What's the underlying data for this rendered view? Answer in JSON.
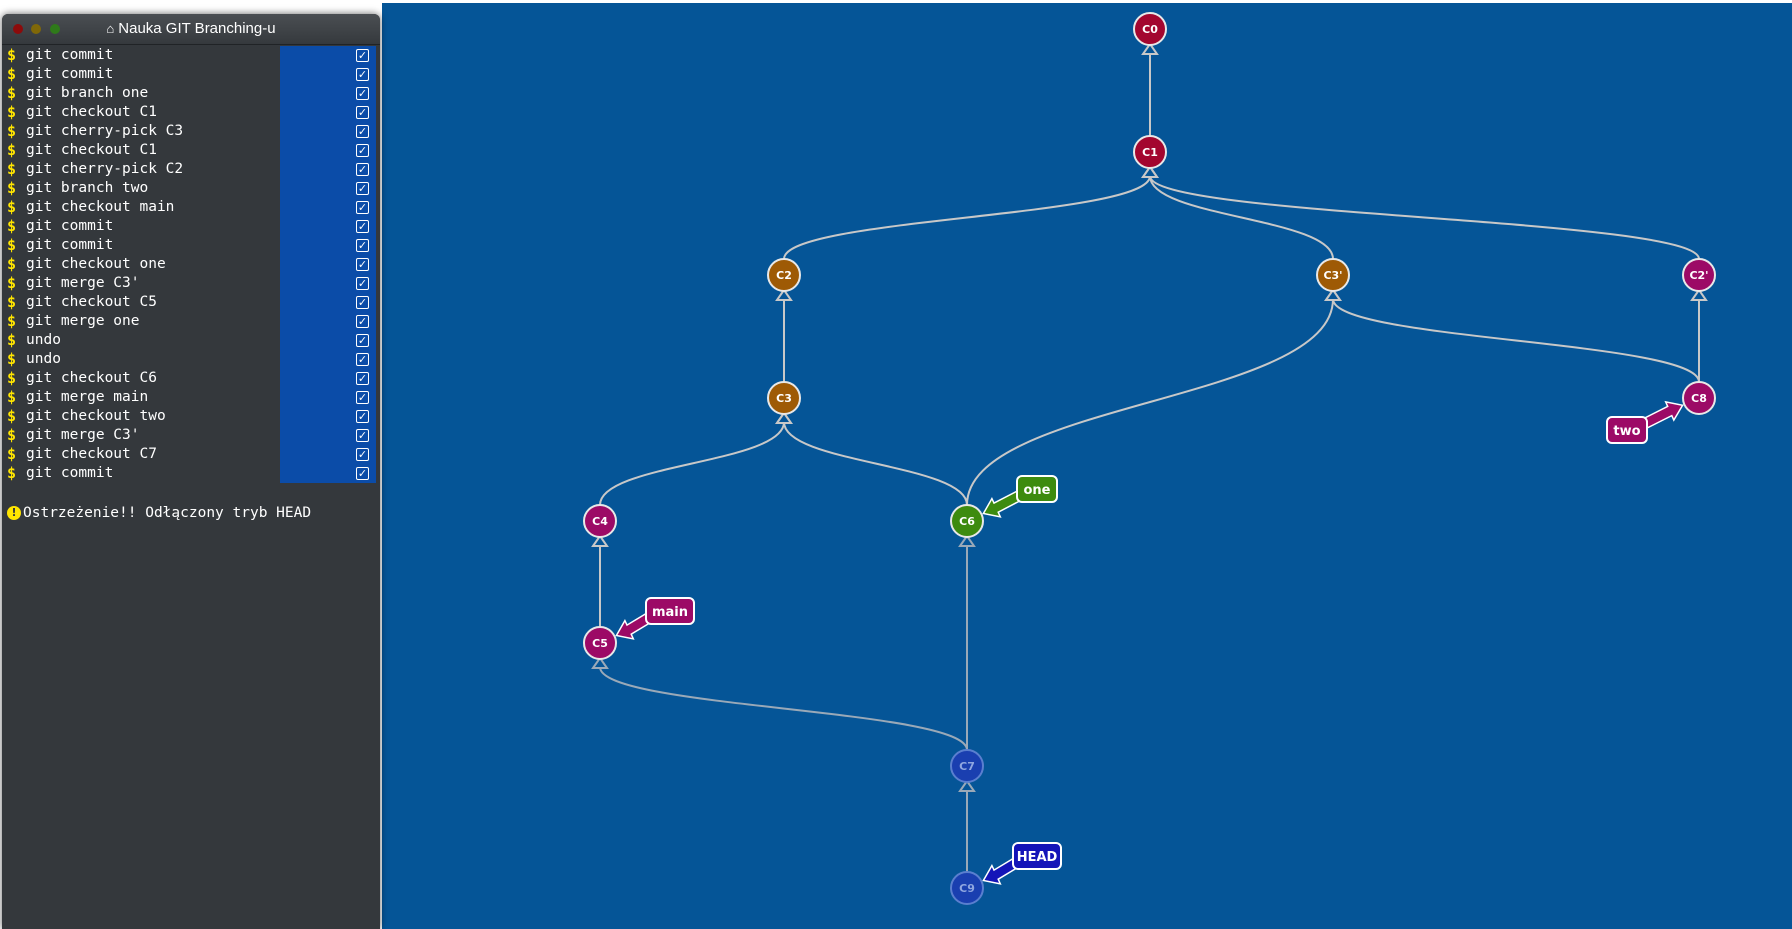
{
  "terminal": {
    "title": "Nauka GIT Branching-u",
    "home_icon": "home-icon",
    "commands": [
      {
        "prompt": "$",
        "text": "git commit",
        "done": true
      },
      {
        "prompt": "$",
        "text": "git commit",
        "done": true
      },
      {
        "prompt": "$",
        "text": "git branch one",
        "done": true
      },
      {
        "prompt": "$",
        "text": "git checkout C1",
        "done": true
      },
      {
        "prompt": "$",
        "text": "git cherry-pick C3",
        "done": true
      },
      {
        "prompt": "$",
        "text": "git checkout C1",
        "done": true
      },
      {
        "prompt": "$",
        "text": "git cherry-pick C2",
        "done": true
      },
      {
        "prompt": "$",
        "text": "git branch two",
        "done": true
      },
      {
        "prompt": "$",
        "text": "git checkout main",
        "done": true
      },
      {
        "prompt": "$",
        "text": "git commit",
        "done": true
      },
      {
        "prompt": "$",
        "text": "git commit",
        "done": true
      },
      {
        "prompt": "$",
        "text": "git checkout one",
        "done": true
      },
      {
        "prompt": "$",
        "text": "git merge C3'",
        "done": true
      },
      {
        "prompt": "$",
        "text": "git checkout C5",
        "done": true
      },
      {
        "prompt": "$",
        "text": "git merge one",
        "done": true
      },
      {
        "prompt": "$",
        "text": "undo",
        "done": true
      },
      {
        "prompt": "$",
        "text": "undo",
        "done": true
      },
      {
        "prompt": "$",
        "text": "git checkout C6",
        "done": true
      },
      {
        "prompt": "$",
        "text": "git merge main",
        "done": true
      },
      {
        "prompt": "$",
        "text": "git checkout two",
        "done": true
      },
      {
        "prompt": "$",
        "text": "git merge C3'",
        "done": true
      },
      {
        "prompt": "$",
        "text": "git checkout C7",
        "done": true
      },
      {
        "prompt": "$",
        "text": "git commit",
        "done": true
      }
    ],
    "warning": "Ostrzeżenie!! Odłączony tryb HEAD",
    "warning_icon": "exclamation-icon"
  },
  "graph": {
    "colors": {
      "background": "#055597",
      "red": "#a3062f",
      "orange": "#9e5a05",
      "magenta": "#9c0a66",
      "green": "#3d8b0f",
      "blue_commit": "#1a3fb0",
      "head": "#1414b8",
      "edge": "#c8c8c8"
    },
    "commits": [
      {
        "id": "C0",
        "color": "red"
      },
      {
        "id": "C1",
        "color": "red"
      },
      {
        "id": "C2",
        "color": "orange"
      },
      {
        "id": "C3'",
        "color": "orange"
      },
      {
        "id": "C2'",
        "color": "magenta"
      },
      {
        "id": "C3",
        "color": "orange"
      },
      {
        "id": "C8",
        "color": "magenta"
      },
      {
        "id": "C4",
        "color": "magenta"
      },
      {
        "id": "C6",
        "color": "green"
      },
      {
        "id": "C5",
        "color": "magenta"
      },
      {
        "id": "C7",
        "color": "blue_commit"
      },
      {
        "id": "C9",
        "color": "blue_commit"
      }
    ],
    "edges": [
      {
        "from": "C1",
        "to": "C0"
      },
      {
        "from": "C2",
        "to": "C1"
      },
      {
        "from": "C3'",
        "to": "C1"
      },
      {
        "from": "C2'",
        "to": "C1"
      },
      {
        "from": "C3",
        "to": "C2"
      },
      {
        "from": "C8",
        "to": "C2'"
      },
      {
        "from": "C8",
        "to": "C3'"
      },
      {
        "from": "C6",
        "to": "C3'"
      },
      {
        "from": "C4",
        "to": "C3"
      },
      {
        "from": "C6",
        "to": "C3"
      },
      {
        "from": "C5",
        "to": "C4"
      },
      {
        "from": "C7",
        "to": "C6"
      },
      {
        "from": "C7",
        "to": "C5"
      },
      {
        "from": "C9",
        "to": "C7"
      }
    ],
    "branches": [
      {
        "name": "main",
        "target": "C5",
        "color": "magenta"
      },
      {
        "name": "one",
        "target": "C6",
        "color": "green"
      },
      {
        "name": "two",
        "target": "C8",
        "color": "magenta"
      },
      {
        "name": "HEAD",
        "target": "C9",
        "color": "head"
      }
    ]
  }
}
